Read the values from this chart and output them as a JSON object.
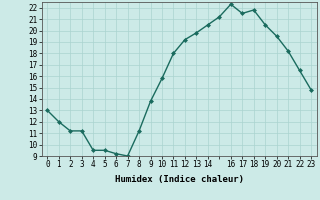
{
  "x": [
    0,
    1,
    2,
    3,
    4,
    5,
    6,
    7,
    8,
    9,
    10,
    11,
    12,
    13,
    14,
    15,
    16,
    17,
    18,
    19,
    20,
    21,
    22,
    23
  ],
  "y": [
    13.0,
    12.0,
    11.2,
    11.2,
    9.5,
    9.5,
    9.2,
    9.0,
    11.2,
    13.8,
    15.8,
    18.0,
    19.2,
    19.8,
    20.5,
    21.2,
    22.3,
    21.5,
    21.8,
    20.5,
    19.5,
    18.2,
    16.5,
    14.8
  ],
  "line_color": "#1a6b5e",
  "marker": "D",
  "marker_size": 2.0,
  "bg_color": "#cceae7",
  "grid_color": "#aad4d0",
  "xlabel": "Humidex (Indice chaleur)",
  "ylim": [
    9,
    22.5
  ],
  "xlim": [
    -0.5,
    23.5
  ],
  "yticks": [
    9,
    10,
    11,
    12,
    13,
    14,
    15,
    16,
    17,
    18,
    19,
    20,
    21,
    22
  ],
  "xticks": [
    0,
    1,
    2,
    3,
    4,
    5,
    6,
    7,
    8,
    9,
    10,
    11,
    12,
    13,
    14,
    15,
    16,
    17,
    18,
    19,
    20,
    21,
    22,
    23
  ],
  "xtick_labels": [
    "0",
    "1",
    "2",
    "3",
    "4",
    "5",
    "6",
    "7",
    "8",
    "9",
    "10",
    "11",
    "12",
    "13",
    "14",
    "",
    "16",
    "17",
    "18",
    "19",
    "20",
    "21",
    "22",
    "23"
  ],
  "line_width": 1.0,
  "tick_fontsize": 5.5,
  "xlabel_fontsize": 6.5
}
